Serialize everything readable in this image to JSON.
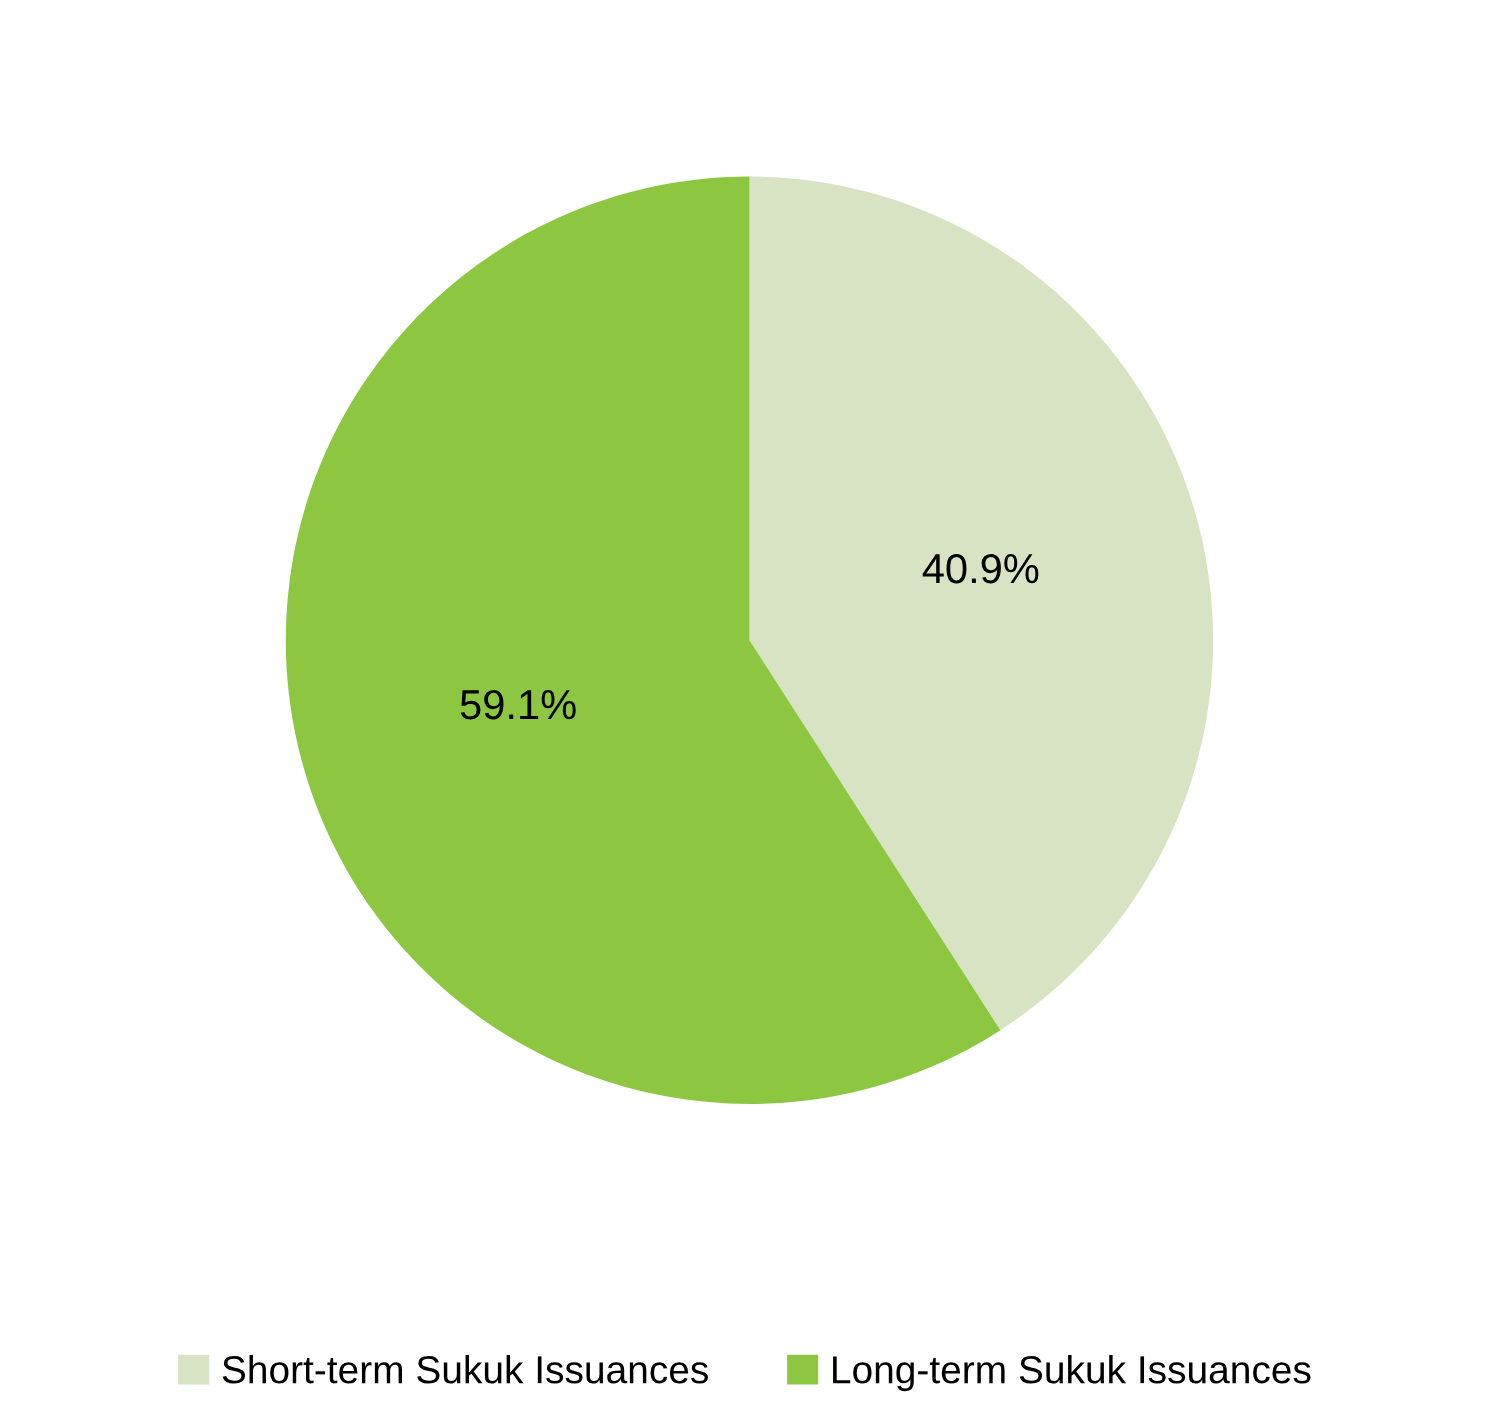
{
  "chart_data": {
    "type": "pie",
    "categories": [
      "Short-term Sukuk Issuances",
      "Long-term Sukuk Issuances"
    ],
    "values": [
      40.9,
      59.1
    ],
    "colors": [
      "#d7e3c3",
      "#8dc641"
    ],
    "value_labels": [
      "40.9%",
      "59.1%"
    ],
    "legend": "bottom"
  }
}
